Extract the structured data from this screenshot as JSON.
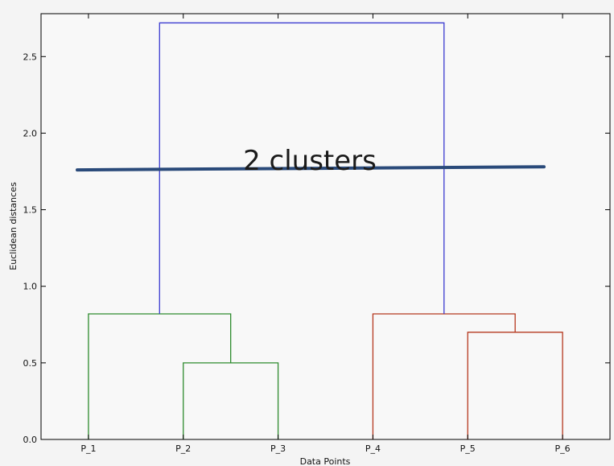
{
  "chart_data": {
    "type": "dendrogram",
    "title": "",
    "xlabel": "Data Points",
    "ylabel": "Euclidean distances",
    "ylim": [
      0,
      2.78
    ],
    "yticks": [
      0.0,
      0.5,
      1.0,
      1.5,
      2.0,
      2.5
    ],
    "ytick_labels": [
      "0.0",
      "0.5",
      "1.0",
      "1.5",
      "2.0",
      "2.5"
    ],
    "leaves": [
      "P_1",
      "P_2",
      "P_3",
      "P_4",
      "P_5",
      "P_6"
    ],
    "merges": [
      {
        "left": "P_2",
        "right": "P_3",
        "height": 0.5,
        "color": "#2e8b2e"
      },
      {
        "left": "P_1",
        "right": "P_2+P_3",
        "height": 0.82,
        "color": "#2e8b2e"
      },
      {
        "left": "P_5",
        "right": "P_6",
        "height": 0.7,
        "color": "#b5381e"
      },
      {
        "left": "P_4",
        "right": "P_5+P_6",
        "height": 0.82,
        "color": "#b5381e"
      },
      {
        "left": "P_1+P_2+P_3",
        "right": "P_4+P_5+P_6",
        "height": 2.72,
        "color": "#3a3ad0"
      }
    ],
    "annotation": {
      "text": "2 clusters",
      "cut_height_start": 1.76,
      "cut_height_end": 1.78,
      "line_color": "#2a4a7a"
    },
    "grid": false,
    "legend": "none"
  }
}
